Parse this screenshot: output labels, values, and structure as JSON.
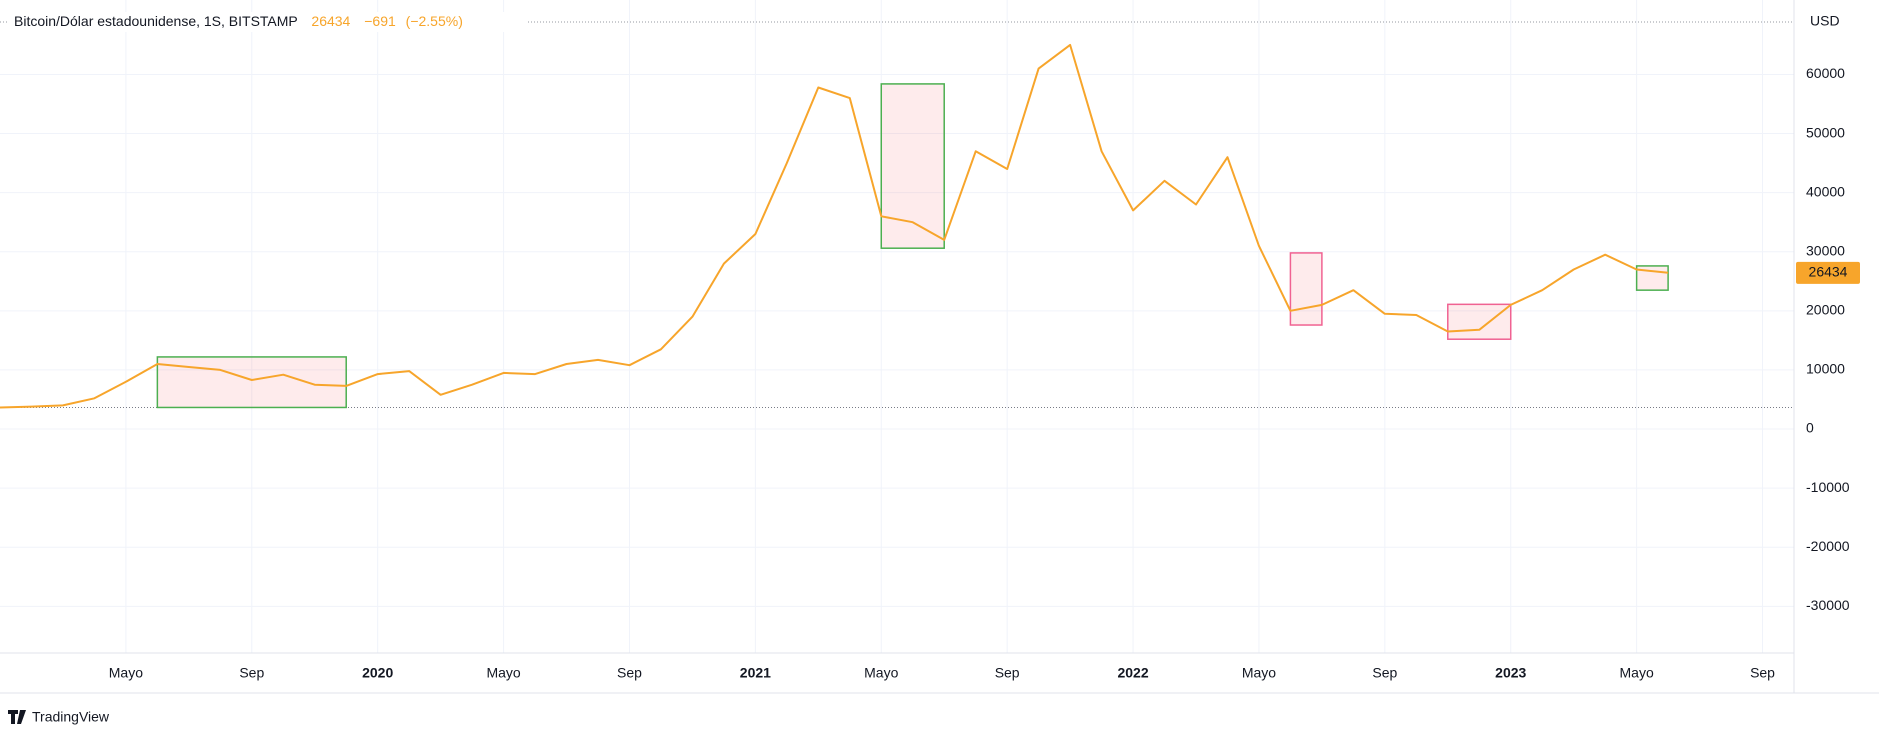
{
  "chart_data": {
    "type": "line",
    "title": "Bitcoin/Dólar estadounidense, 1S, BITSTAMP",
    "header_change": "−691",
    "header_change_pct": "(−2.55%)",
    "unit": "USD",
    "brand": "TradingView",
    "color": "#f7a52b",
    "grid": true,
    "x": [
      "2019-01",
      "2019-02",
      "2019-03",
      "2019-04",
      "2019-05",
      "2019-06",
      "2019-07",
      "2019-08",
      "2019-09",
      "2019-10",
      "2019-11",
      "2019-12",
      "2020-01",
      "2020-02",
      "2020-03",
      "2020-04",
      "2020-05",
      "2020-06",
      "2020-07",
      "2020-08",
      "2020-09",
      "2020-10",
      "2020-11",
      "2020-12",
      "2021-01",
      "2021-02",
      "2021-03",
      "2021-04",
      "2021-05",
      "2021-06",
      "2021-07",
      "2021-08",
      "2021-09",
      "2021-10",
      "2021-11",
      "2021-12",
      "2022-01",
      "2022-02",
      "2022-03",
      "2022-04",
      "2022-05",
      "2022-06",
      "2022-07",
      "2022-08",
      "2022-09",
      "2022-10",
      "2022-11",
      "2022-12",
      "2023-01",
      "2023-02",
      "2023-03",
      "2023-04",
      "2023-05",
      "2023-06"
    ],
    "values": [
      3650,
      3800,
      4000,
      5200,
      8000,
      11000,
      10500,
      10000,
      8300,
      9200,
      7500,
      7300,
      9300,
      9800,
      5800,
      7500,
      9500,
      9300,
      11000,
      11700,
      10800,
      13500,
      19000,
      28000,
      33000,
      45000,
      57800,
      56000,
      36000,
      35000,
      32000,
      47000,
      44000,
      61000,
      65000,
      47000,
      37000,
      42000,
      38000,
      46000,
      31000,
      20000,
      21000,
      23500,
      19500,
      19300,
      16500,
      16800,
      21000,
      23500,
      27000,
      29500,
      27000,
      26434
    ],
    "boxes": [
      {
        "x": [
          "2019-06",
          "2019-12"
        ],
        "y": [
          3650,
          12200
        ],
        "color": "#4caf50"
      },
      {
        "x": [
          "2021-05",
          "2021-07"
        ],
        "y": [
          30600,
          58400
        ],
        "color": "#4caf50"
      },
      {
        "x": [
          "2022-06",
          "2022-07"
        ],
        "y": [
          17600,
          29800
        ],
        "color": "#f06292"
      },
      {
        "x": [
          "2022-11",
          "2023-01"
        ],
        "y": [
          15200,
          21100
        ],
        "color": "#f06292"
      },
      {
        "x": [
          "2023-05",
          "2023-06"
        ],
        "y": [
          23500,
          27600
        ],
        "color": "#4caf50"
      }
    ],
    "xlim": [
      "2019-01",
      "2023-10"
    ],
    "xticks": [
      {
        "value": "2019-05",
        "label": "Mayo"
      },
      {
        "value": "2019-09",
        "label": "Sep"
      },
      {
        "value": "2020-01",
        "label": "2020"
      },
      {
        "value": "2020-05",
        "label": "Mayo"
      },
      {
        "value": "2020-09",
        "label": "Sep"
      },
      {
        "value": "2021-01",
        "label": "2021"
      },
      {
        "value": "2021-05",
        "label": "Mayo"
      },
      {
        "value": "2021-09",
        "label": "Sep"
      },
      {
        "value": "2022-01",
        "label": "2022"
      },
      {
        "value": "2022-05",
        "label": "Mayo"
      },
      {
        "value": "2022-09",
        "label": "Sep"
      },
      {
        "value": "2023-01",
        "label": "2023"
      },
      {
        "value": "2023-05",
        "label": "Mayo"
      },
      {
        "value": "2023-09",
        "label": "Sep"
      }
    ],
    "ylim": [
      -37900,
      72600
    ],
    "yticks": [
      -30000,
      -20000,
      -10000,
      0,
      10000,
      20000,
      30000,
      40000,
      50000,
      60000
    ]
  }
}
